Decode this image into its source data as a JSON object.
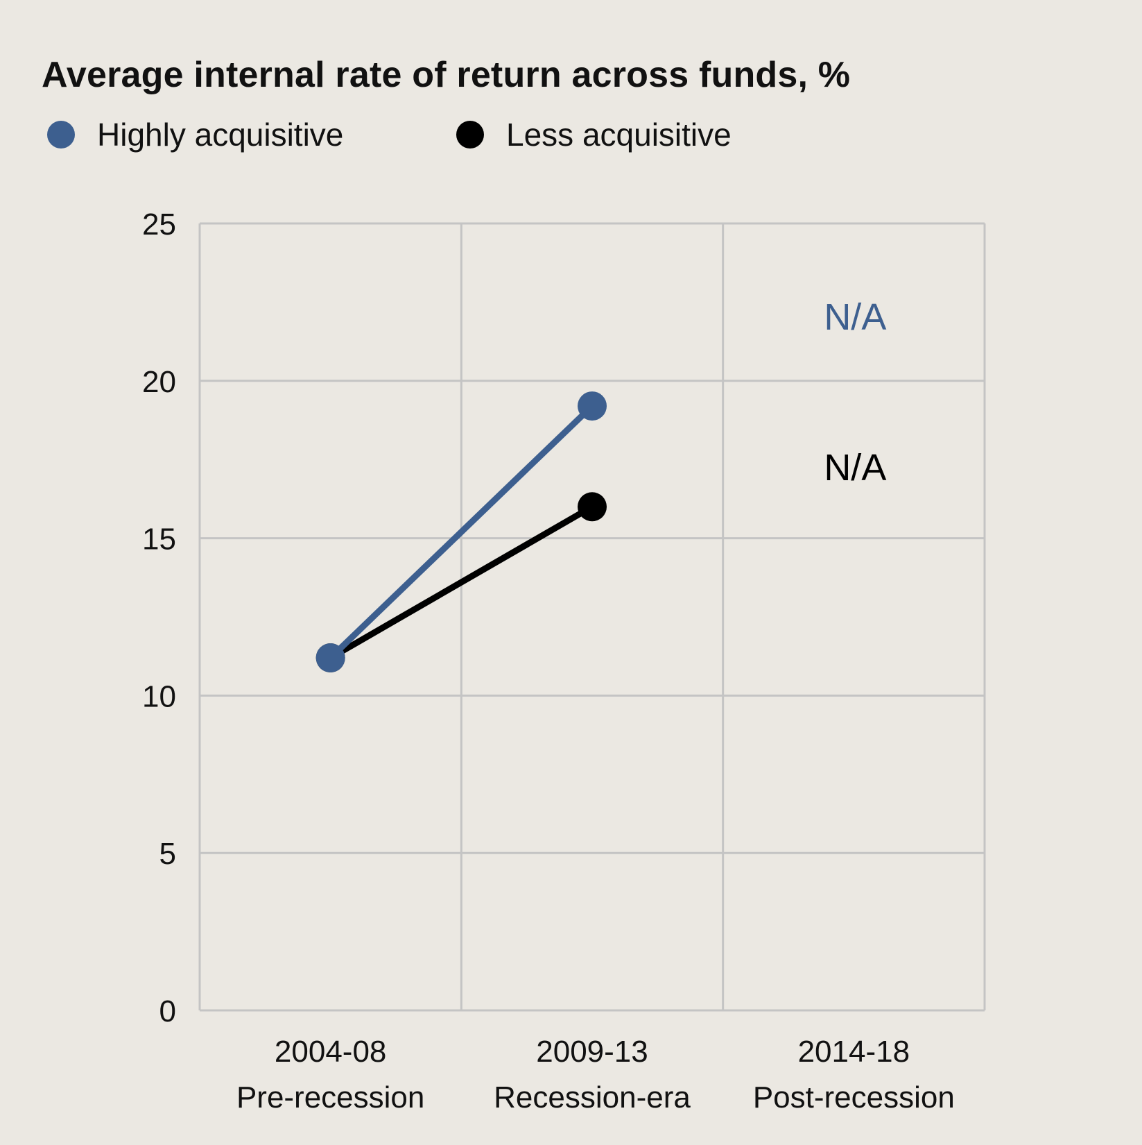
{
  "chart_data": {
    "type": "line",
    "title": "Average internal rate of return across funds, %",
    "xlabel": "",
    "ylabel": "",
    "categories": [
      "2004-08",
      "2009-13",
      "2014-18"
    ],
    "category_sublabels": [
      "Pre-recession",
      "Recession-era",
      "Post-recession"
    ],
    "ylim": [
      0,
      25
    ],
    "yticks": [
      0,
      5,
      10,
      15,
      20,
      25
    ],
    "grid": true,
    "legend_position": "top-left",
    "series": [
      {
        "name": "Highly acquisitive",
        "color": "#3d5f8f",
        "values": [
          11.2,
          19.2,
          null
        ],
        "na_label": "N/A"
      },
      {
        "name": "Less acquisitive",
        "color": "#000000",
        "values": [
          11.2,
          16.0,
          null
        ],
        "na_label": "N/A"
      }
    ]
  }
}
